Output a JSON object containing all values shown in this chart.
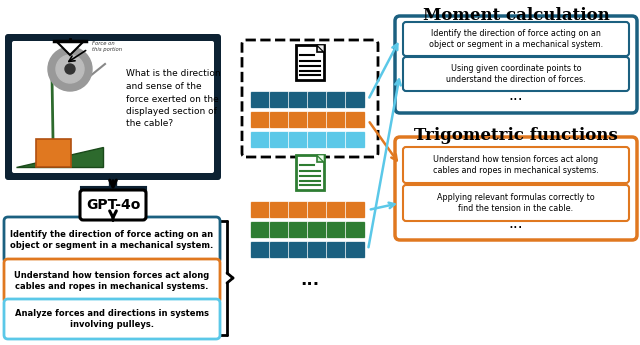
{
  "bg_color": "#ffffff",
  "teal_dark": "#1b6080",
  "teal_light": "#5bc8e8",
  "orange": "#e07820",
  "green_dark": "#2e7d32",
  "black": "#111111",
  "kc_box1_text": "Identify the direction of force acting on an\nobject or segment in a mechanical system.",
  "kc_box2_text": "Understand how tension forces act along\ncables and ropes in mechanical systems.",
  "kc_box3_text": "Analyze forces and directions in systems\ninvolving pulleys.",
  "gpt_label": "GPT-4o",
  "moment_title": "Moment calculation",
  "trig_title": "Trigometric functions",
  "moment_kc1": "Identify the direction of force acting on an\nobject or segment in a mechanical system.",
  "moment_kc2": "Using given coordinate points to\nunderstand the direction of forces.",
  "trig_kc1": "Understand how tension forces act along\ncables and ropes in mechanical systems.",
  "trig_kc2": "Applying relevant formulas correctly to\nfind the tension in the cable.",
  "dots": "...",
  "question_text": "What is the direction\nand sense of the\nforce exerted on the\ndisplayed section of\nthe cable?"
}
